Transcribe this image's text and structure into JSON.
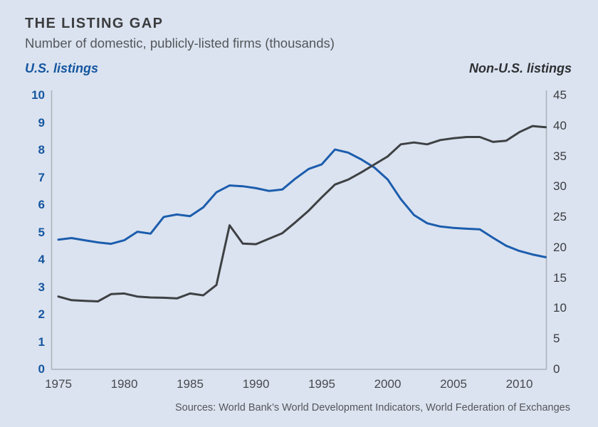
{
  "header": {
    "title": "THE LISTING GAP",
    "subtitle": "Number of domestic, publicly-listed firms (thousands)"
  },
  "footer": {
    "source": "Sources: World Bank’s World Development Indicators, World Federation of Exchanges"
  },
  "colors": {
    "background": "#dbe3f0",
    "us_line": "#1c5dad",
    "non_us_line": "#3e4143",
    "us_text": "#15569f",
    "dark_text": "#2e3033",
    "axis_line": "#a9b0ba"
  },
  "chart_data": {
    "type": "line",
    "title": "THE LISTING GAP",
    "subtitle": "Number of domestic, publicly-listed firms (thousands)",
    "grid": false,
    "x": [
      1975,
      1976,
      1977,
      1978,
      1979,
      1980,
      1981,
      1982,
      1983,
      1984,
      1985,
      1986,
      1987,
      1988,
      1989,
      1990,
      1991,
      1992,
      1993,
      1994,
      1995,
      1996,
      1997,
      1998,
      1999,
      2000,
      2001,
      2002,
      2003,
      2004,
      2005,
      2006,
      2007,
      2008,
      2009,
      2010,
      2011,
      2012
    ],
    "x_axis": {
      "range": [
        1975,
        2012
      ],
      "ticks": [
        1975,
        1980,
        1985,
        1990,
        1995,
        2000,
        2005,
        2010
      ]
    },
    "left_axis": {
      "label": "U.S. listings",
      "range": [
        0,
        10
      ],
      "ticks": [
        10,
        9,
        8,
        7,
        6,
        5,
        4,
        3,
        2,
        1,
        0
      ],
      "color": "#15569f"
    },
    "right_axis": {
      "label": "Non-U.S. listings",
      "range": [
        0,
        45
      ],
      "ticks": [
        45,
        40,
        35,
        30,
        25,
        20,
        15,
        10,
        5,
        0
      ],
      "color": "#2e3033"
    },
    "series": [
      {
        "name": "U.S. listings",
        "axis": "left",
        "color": "#1c5dad",
        "values": [
          4.72,
          4.78,
          4.7,
          4.62,
          4.57,
          4.7,
          5.01,
          4.94,
          5.55,
          5.64,
          5.58,
          5.9,
          6.45,
          6.7,
          6.67,
          6.6,
          6.5,
          6.55,
          6.95,
          7.3,
          7.47,
          8.01,
          7.9,
          7.65,
          7.35,
          6.92,
          6.2,
          5.62,
          5.32,
          5.2,
          5.15,
          5.12,
          5.1,
          4.79,
          4.5,
          4.31,
          4.18,
          4.08
        ]
      },
      {
        "name": "Non-U.S. listings",
        "axis": "right",
        "color": "#3e4143",
        "values": [
          11.9,
          11.3,
          11.2,
          11.1,
          12.3,
          12.4,
          11.9,
          11.75,
          11.7,
          11.6,
          12.4,
          12.1,
          13.8,
          23.6,
          20.6,
          20.5,
          21.4,
          22.3,
          24.1,
          26.0,
          28.2,
          30.3,
          31.1,
          32.3,
          33.6,
          34.9,
          36.9,
          37.2,
          36.9,
          37.6,
          37.9,
          38.1,
          38.1,
          37.3,
          37.5,
          38.9,
          39.9,
          39.7
        ]
      }
    ]
  }
}
